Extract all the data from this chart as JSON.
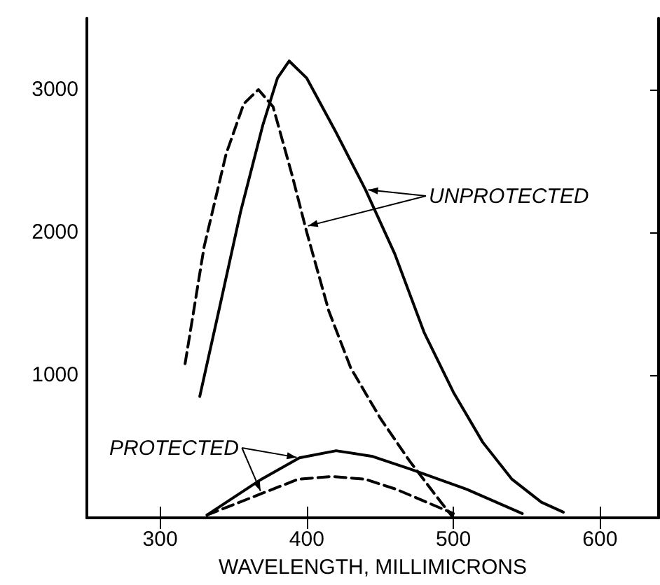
{
  "chart_data": {
    "type": "line",
    "xlabel": "WAVELENGTH, MILLIMICRONS",
    "xlim": [
      250,
      640
    ],
    "ylim": [
      0,
      3500
    ],
    "xticks": [
      300,
      400,
      500,
      600
    ],
    "yticks": [
      1000,
      2000,
      3000
    ],
    "grid": false,
    "marker": "none",
    "series": [
      {
        "color": "#000000",
        "line_style": "solid",
        "x": [
          327,
          340,
          355,
          370,
          380,
          388,
          400,
          420,
          440,
          460,
          480,
          500,
          520,
          540,
          560,
          575
        ],
        "values": [
          850,
          1450,
          2150,
          2750,
          3080,
          3200,
          3080,
          2700,
          2300,
          1850,
          1300,
          880,
          530,
          270,
          110,
          40
        ]
      },
      {
        "color": "#000000",
        "line_style": "dashed",
        "x": [
          317,
          330,
          345,
          357,
          367,
          377,
          390,
          400,
          415,
          430,
          450,
          470,
          490,
          500
        ],
        "values": [
          1080,
          1900,
          2550,
          2900,
          3000,
          2880,
          2400,
          2000,
          1450,
          1050,
          700,
          400,
          130,
          0
        ]
      },
      {
        "color": "#000000",
        "line_style": "solid",
        "x": [
          332,
          369,
          395,
          420,
          445,
          471,
          509,
          547
        ],
        "values": [
          20,
          270,
          420,
          470,
          430,
          340,
          200,
          30
        ]
      },
      {
        "color": "#000000",
        "line_style": "dashed",
        "x": [
          332,
          394,
          417,
          440,
          461,
          500
        ],
        "values": [
          20,
          270,
          290,
          270,
          200,
          30
        ]
      }
    ],
    "annotations": [
      {
        "text": "UNPROTECTED",
        "x": 440,
        "y": 2300
      },
      {
        "text": "PROTECTED",
        "x": 395,
        "y": 420
      }
    ]
  }
}
